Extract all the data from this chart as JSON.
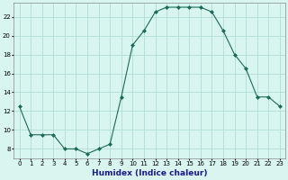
{
  "x": [
    0,
    1,
    2,
    3,
    4,
    5,
    6,
    7,
    8,
    9,
    10,
    11,
    12,
    13,
    14,
    15,
    16,
    17,
    18,
    19,
    20,
    21,
    22,
    23
  ],
  "y": [
    12.5,
    9.5,
    9.5,
    9.5,
    8.0,
    8.0,
    7.5,
    8.0,
    8.5,
    13.5,
    19.0,
    20.5,
    22.5,
    23.0,
    23.0,
    23.0,
    23.0,
    22.5,
    20.5,
    18.0,
    16.5,
    13.5,
    13.5,
    12.5
  ],
  "line_color": "#1a6b5a",
  "marker": "D",
  "marker_size": 2,
  "bg_color": "#d8f5f0",
  "grid_color": "#b0ddd5",
  "xlabel": "Humidex (Indice chaleur)",
  "xlim": [
    -0.5,
    23.5
  ],
  "ylim": [
    7,
    23.5
  ],
  "yticks": [
    8,
    10,
    12,
    14,
    16,
    18,
    20,
    22
  ],
  "xticks": [
    0,
    1,
    2,
    3,
    4,
    5,
    6,
    7,
    8,
    9,
    10,
    11,
    12,
    13,
    14,
    15,
    16,
    17,
    18,
    19,
    20,
    21,
    22,
    23
  ],
  "xtick_labels": [
    "0",
    "1",
    "2",
    "3",
    "4",
    "5",
    "6",
    "7",
    "8",
    "9",
    "10",
    "11",
    "12",
    "13",
    "14",
    "15",
    "16",
    "17",
    "18",
    "19",
    "20",
    "21",
    "22",
    "23"
  ],
  "xlabel_fontsize": 6.5,
  "xlabel_color": "#1a1a8a",
  "tick_fontsize": 5,
  "linewidth": 0.8
}
